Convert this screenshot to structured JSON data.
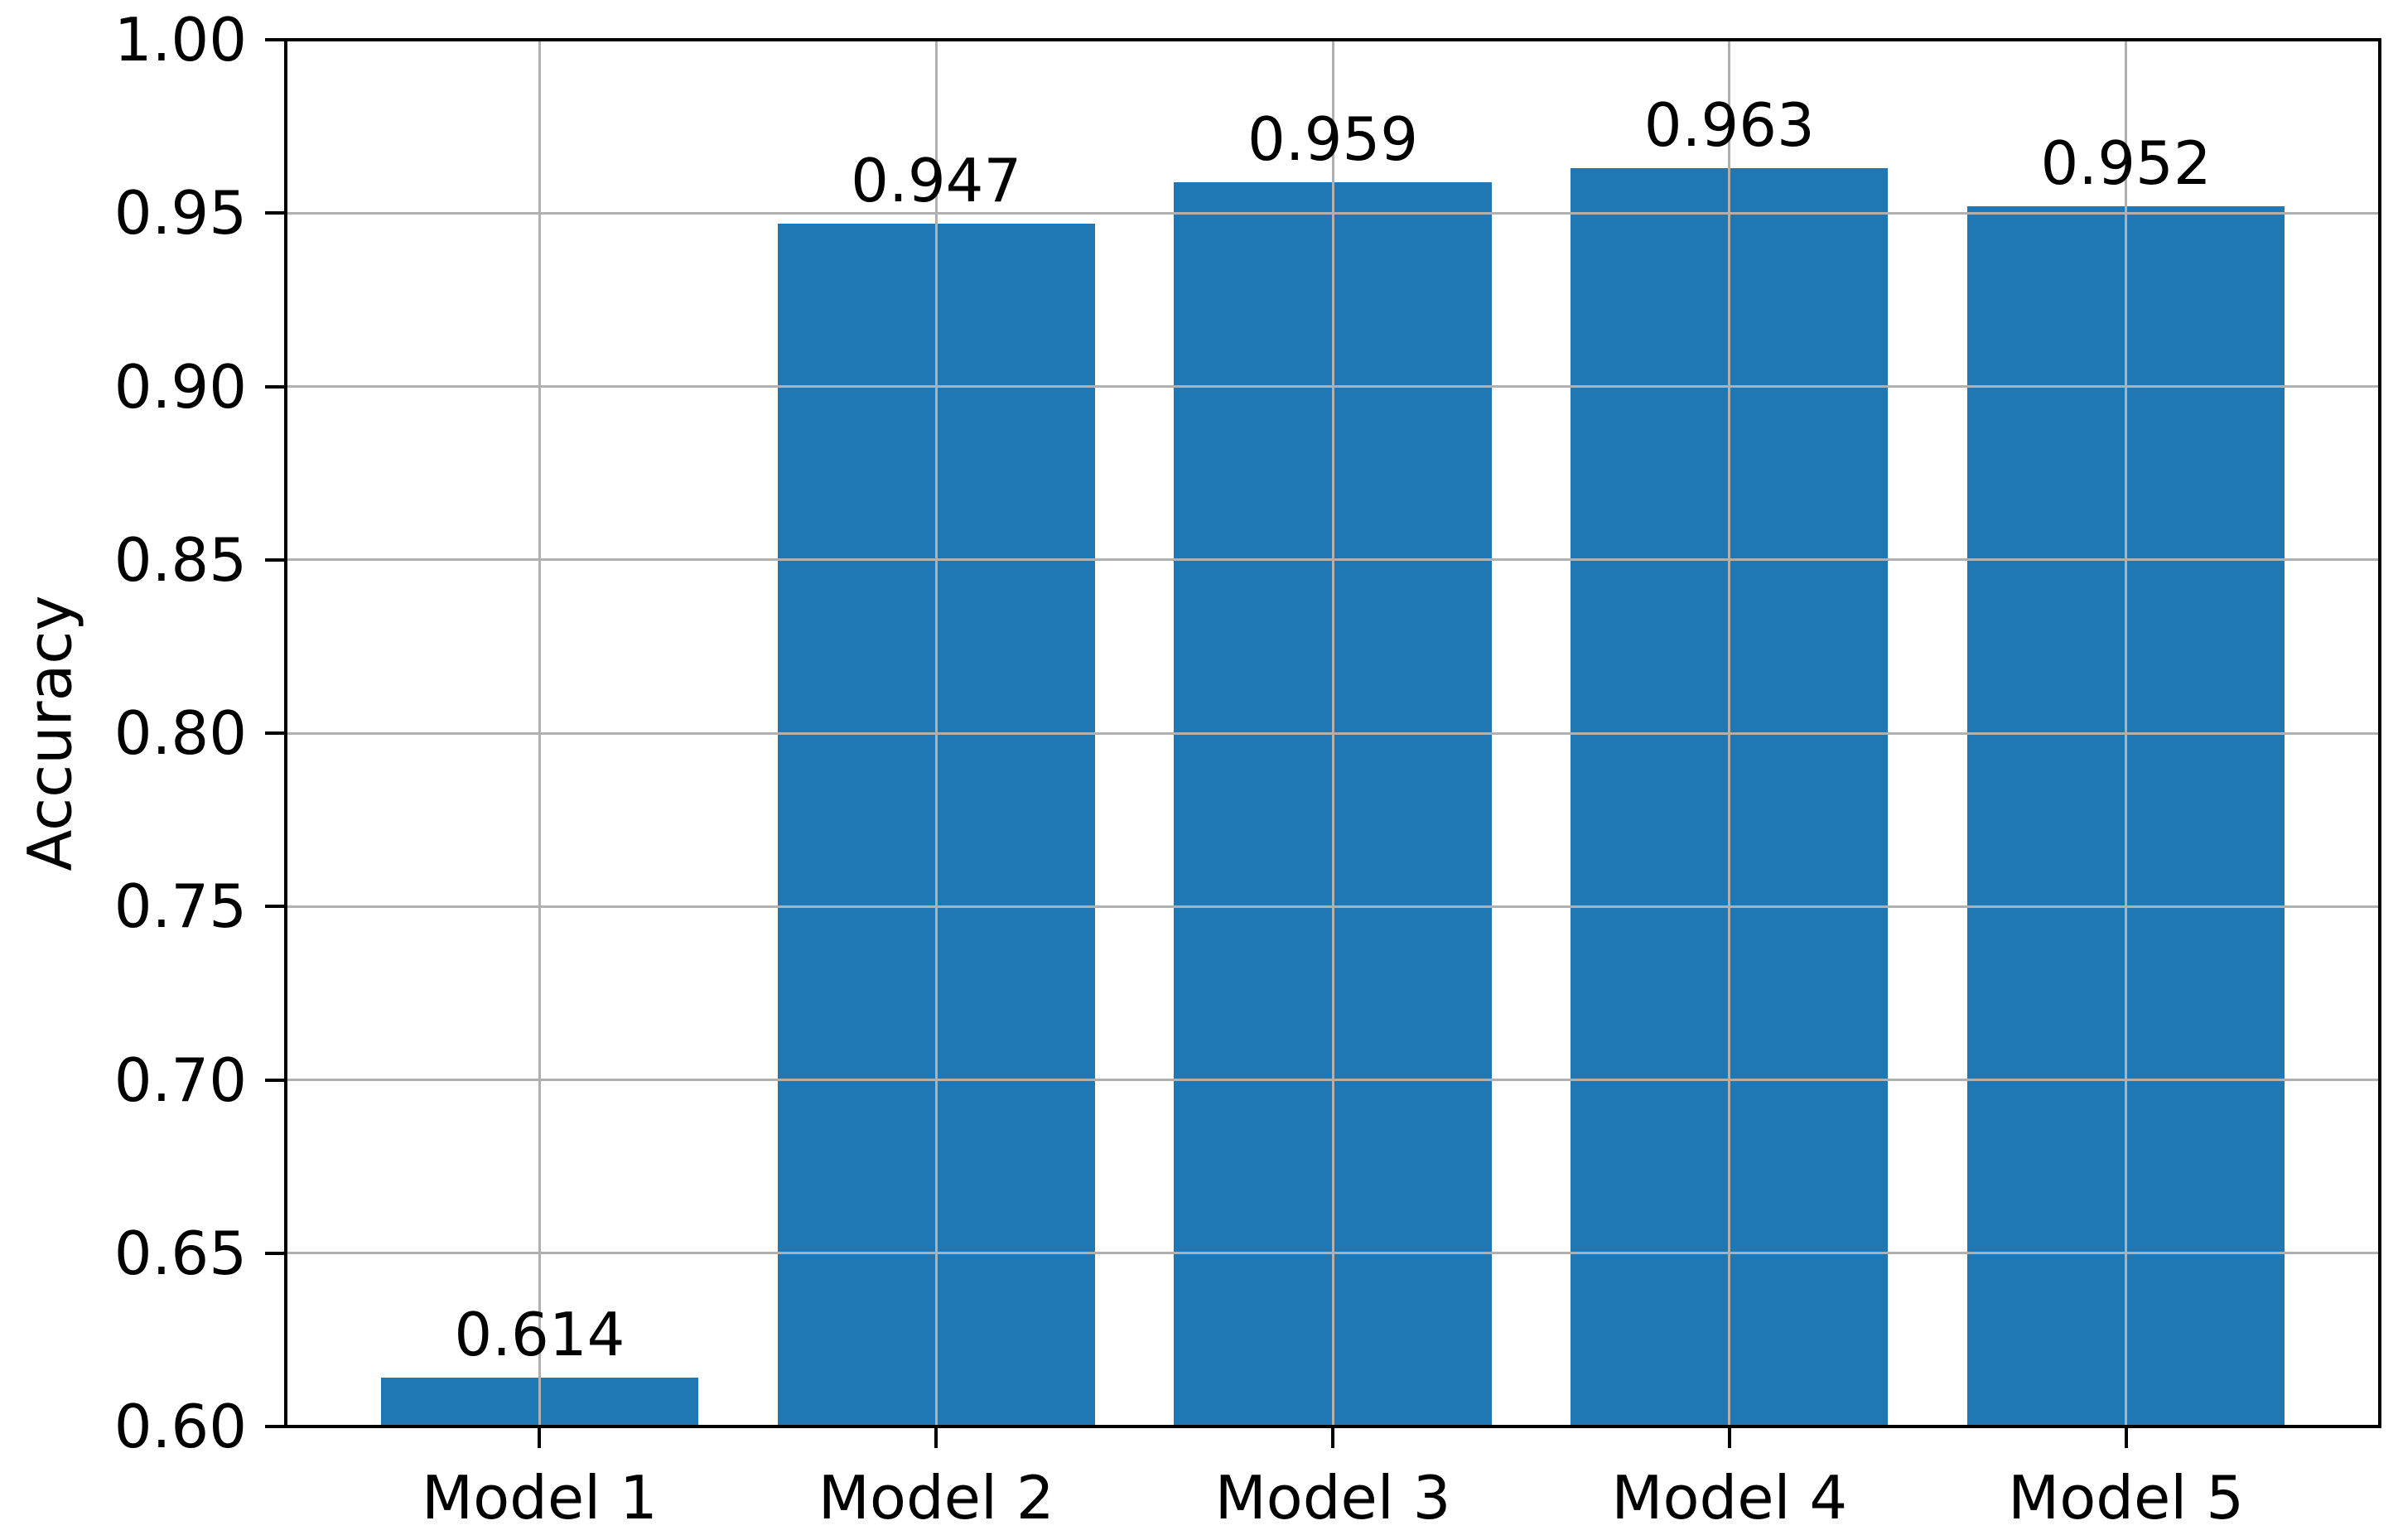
{
  "chart_data": {
    "type": "bar",
    "title": "",
    "categories": [
      "Model 1",
      "Model 2",
      "Model 3",
      "Model 4",
      "Model 5"
    ],
    "values": [
      0.614,
      0.947,
      0.959,
      0.963,
      0.952
    ],
    "bar_labels": [
      "0.614",
      "0.947",
      "0.959",
      "0.963",
      "0.952"
    ],
    "xlabel": "",
    "ylabel": "Accuracy",
    "ylim": [
      0.6,
      1.0
    ],
    "xlim": [
      -0.64,
      4.64
    ],
    "yticks": [
      0.6,
      0.65,
      0.7,
      0.75,
      0.8,
      0.85,
      0.9,
      0.95,
      1.0
    ],
    "ytick_labels": [
      "0.60",
      "0.65",
      "0.70",
      "0.75",
      "0.80",
      "0.85",
      "0.90",
      "0.95",
      "1.00"
    ],
    "bar_width": 0.8,
    "grid": true,
    "grid_on_top": true,
    "legend": false,
    "colors": {
      "bar": "#1f77b4",
      "grid": "#b0b0b0",
      "spine": "#000000",
      "text": "#000000",
      "background": "#ffffff"
    }
  }
}
